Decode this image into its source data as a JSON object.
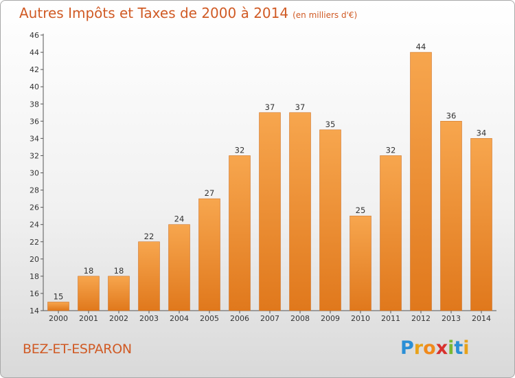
{
  "title": "Autres Impôts et Taxes de 2000 à 2014",
  "subtitle": "(en milliers d'€)",
  "commune": "BEZ-ET-ESPARON",
  "logo": {
    "letters": [
      "P",
      "r",
      "o",
      "x",
      "i",
      "t",
      "i"
    ],
    "colors": [
      "#2a8fd6",
      "#e8a21a",
      "#f08a1c",
      "#d8322e",
      "#7ab833",
      "#2a8fd6",
      "#e8a21a"
    ]
  },
  "colors": {
    "bar_top": "#f7a64e",
    "bar_bottom": "#e0781c",
    "bar_edge": "#c8671a",
    "accent": "#d05a24"
  },
  "chart_data": {
    "type": "bar",
    "categories": [
      "2000",
      "2001",
      "2002",
      "2003",
      "2004",
      "2005",
      "2006",
      "2007",
      "2008",
      "2009",
      "2010",
      "2011",
      "2012",
      "2013",
      "2014"
    ],
    "values": [
      15,
      18,
      18,
      22,
      24,
      27,
      32,
      37,
      37,
      35,
      25,
      32,
      44,
      36,
      34
    ],
    "ylim": [
      14,
      46
    ],
    "yticks": [
      14,
      16,
      18,
      20,
      22,
      24,
      26,
      28,
      30,
      32,
      34,
      36,
      38,
      40,
      42,
      44,
      46
    ],
    "grid": false,
    "data_labels": true
  }
}
